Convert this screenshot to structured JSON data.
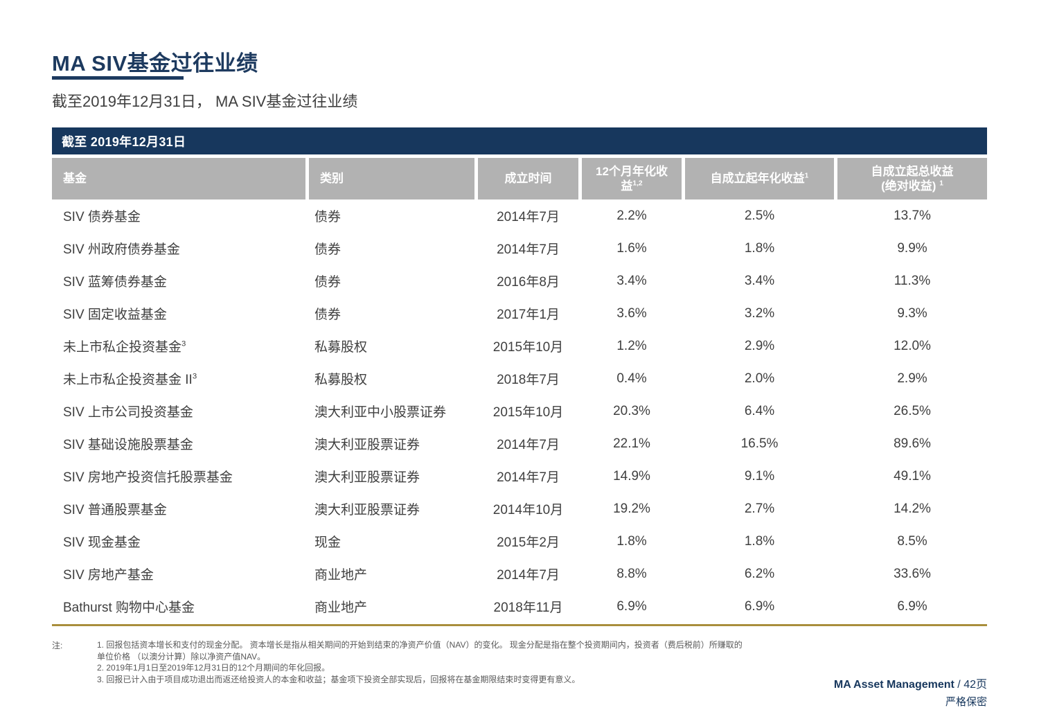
{
  "page": {
    "title": "MA SIV基金过往业绩",
    "subtitle": "截至2019年12月31日， MA SIV基金过往业绩"
  },
  "table": {
    "banner": "截至 2019年12月31日",
    "headers": [
      {
        "lines": [
          "基金"
        ],
        "sup": ""
      },
      {
        "lines": [
          "类别"
        ],
        "sup": ""
      },
      {
        "lines": [
          "成立时间"
        ],
        "sup": ""
      },
      {
        "lines": [
          "12个月年化收",
          "益"
        ],
        "sup": "1,2"
      },
      {
        "lines": [
          "自成立起年化收益"
        ],
        "sup": "1"
      },
      {
        "lines": [
          "自成立起总收益",
          "(绝对收益) "
        ],
        "sup": "1"
      }
    ],
    "rows": [
      {
        "fund": "SIV 债券基金",
        "fund_sup": "",
        "category": "债券",
        "inception": "2014年7月",
        "return_12m": "2.2%",
        "return_annualized_since": "2.5%",
        "return_total_since": "13.7%"
      },
      {
        "fund": "SIV 州政府债券基金",
        "fund_sup": "",
        "category": "债券",
        "inception": "2014年7月",
        "return_12m": "1.6%",
        "return_annualized_since": "1.8%",
        "return_total_since": "9.9%"
      },
      {
        "fund": "SIV 蓝筹债券基金",
        "fund_sup": "",
        "category": "债券",
        "inception": "2016年8月",
        "return_12m": "3.4%",
        "return_annualized_since": "3.4%",
        "return_total_since": "11.3%"
      },
      {
        "fund": "SIV 固定收益基金",
        "fund_sup": "",
        "category": "债券",
        "inception": "2017年1月",
        "return_12m": "3.6%",
        "return_annualized_since": "3.2%",
        "return_total_since": "9.3%"
      },
      {
        "fund": "未上市私企投资基金",
        "fund_sup": "3",
        "category": "私募股权",
        "inception": "2015年10月",
        "return_12m": "1.2%",
        "return_annualized_since": "2.9%",
        "return_total_since": "12.0%"
      },
      {
        "fund": "未上市私企投资基金 II",
        "fund_sup": "3",
        "category": "私募股权",
        "inception": "2018年7月",
        "return_12m": "0.4%",
        "return_annualized_since": "2.0%",
        "return_total_since": "2.9%"
      },
      {
        "fund": "SIV 上市公司投资基金",
        "fund_sup": "",
        "category": "澳大利亚中小股票证券",
        "inception": "2015年10月",
        "return_12m": "20.3%",
        "return_annualized_since": "6.4%",
        "return_total_since": "26.5%"
      },
      {
        "fund": "SIV 基础设施股票基金",
        "fund_sup": "",
        "category": "澳大利亚股票证券",
        "inception": "2014年7月",
        "return_12m": "22.1%",
        "return_annualized_since": "16.5%",
        "return_total_since": "89.6%"
      },
      {
        "fund": "SIV 房地产投资信托股票基金",
        "fund_sup": "",
        "category": "澳大利亚股票证券",
        "inception": "2014年7月",
        "return_12m": "14.9%",
        "return_annualized_since": "9.1%",
        "return_total_since": "49.1%"
      },
      {
        "fund": "SIV 普通股票基金",
        "fund_sup": "",
        "category": "澳大利亚股票证券",
        "inception": "2014年10月",
        "return_12m": "19.2%",
        "return_annualized_since": "2.7%",
        "return_total_since": "14.2%"
      },
      {
        "fund": "SIV 现金基金",
        "fund_sup": "",
        "category": "现金",
        "inception": "2015年2月",
        "return_12m": "1.8%",
        "return_annualized_since": "1.8%",
        "return_total_since": "8.5%"
      },
      {
        "fund": "SIV 房地产基金",
        "fund_sup": "",
        "category": "商业地产",
        "inception": "2014年7月",
        "return_12m": "8.8%",
        "return_annualized_since": "6.2%",
        "return_total_since": "33.6%"
      },
      {
        "fund": "Bathurst 购物中心基金",
        "fund_sup": "",
        "category": "商业地产",
        "inception": "2018年11月",
        "return_12m": "6.9%",
        "return_annualized_since": "6.9%",
        "return_total_since": "6.9%"
      }
    ]
  },
  "notes": {
    "label": "注:",
    "lines": [
      "1. 回报包括资本增长和支付的现金分配。 资本增长是指从相关期间的开始到结束的净资产价值（NAV）的变化。 现金分配是指在整个投资期间内，投资者（费后税前）所赚取的",
      "单位价格 （以澳分计算）除以净资产值NAV。",
      "2. 2019年1月1日至2019年12月31日的12个月期间的年化回报。",
      "3. 回报已计入由于项目成功退出而返还给投资人的本金和收益；基金项下投资全部实现后，回报将在基金期限结束时变得更有意义。"
    ]
  },
  "footer": {
    "brand": "MA Asset Management",
    "page_number": " / 42页",
    "confidentiality": "严格保密"
  },
  "colors": {
    "navy": "#17375d",
    "header_gray": "#b2b2b2",
    "gold": "#a98e3c",
    "body_text": "#3f3f3f"
  }
}
